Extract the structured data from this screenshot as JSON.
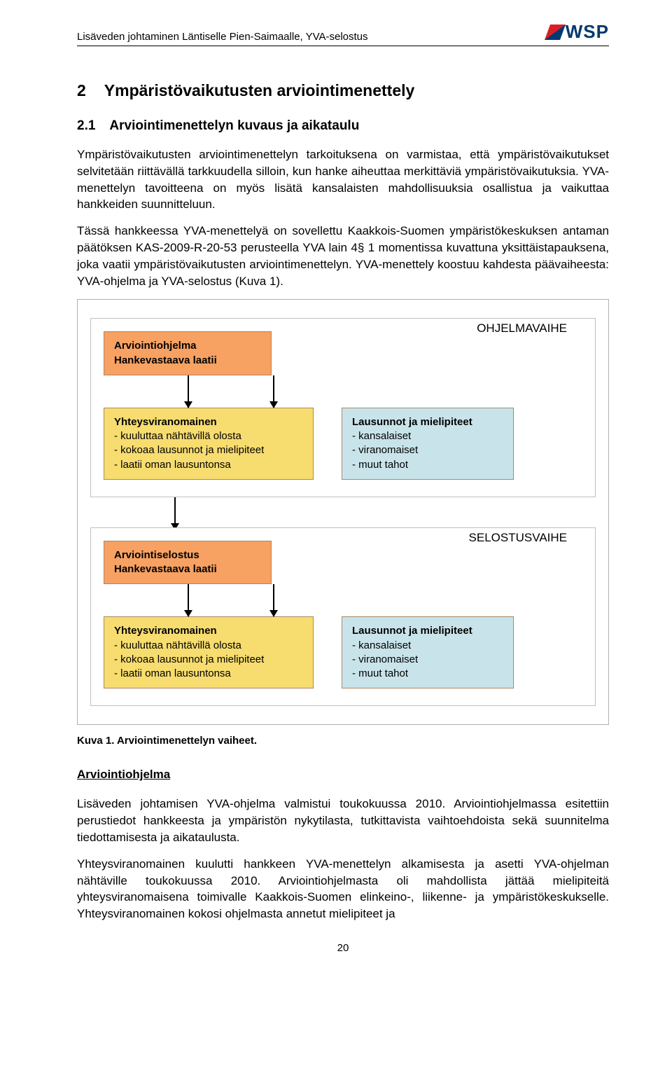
{
  "header": {
    "doc_title": "Lisäveden johtaminen Läntiselle Pien-Saimaalle, YVA-selostus",
    "logo_text": "WSP"
  },
  "section": {
    "number": "2",
    "title": "Ympäristövaikutusten arviointimenettely"
  },
  "subsection": {
    "number": "2.1",
    "title": "Arviointimenettelyn kuvaus ja aikataulu"
  },
  "paragraphs": {
    "p1": "Ympäristövaikutusten arviointimenettelyn tarkoituksena on varmistaa, että ympäristövaikutukset selvitetään riittävällä tarkkuudella silloin, kun hanke aiheuttaa merkittäviä ympäristövaikutuksia. YVA-menettelyn tavoitteena on myös lisätä kansalaisten mahdollisuuksia osallistua ja vaikuttaa hankkeiden suunnitteluun.",
    "p2": "Tässä hankkeessa YVA-menettelyä on sovellettu Kaakkois-Suomen ympäristökeskuksen antaman päätöksen KAS-2009-R-20-53 perusteella YVA lain 4§ 1 momentissa kuvattuna yksittäistapauksena, joka vaatii ympäristövaikutusten arviointimenettelyn. YVA-menettely koostuu kahdesta päävaiheesta: YVA-ohjelma ja YVA-selostus (Kuva 1).",
    "p3": "Lisäveden johtamisen YVA-ohjelma valmistui toukokuussa 2010. Arviointiohjelmassa esitettiin perustiedot hankkeesta ja ympäristön nykytilasta, tutkittavista vaihtoehdoista sekä suunnitelma tiedottamisesta ja aikataulusta.",
    "p4": "Yhteysviranomainen kuulutti hankkeen YVA-menettelyn alkamisesta ja asetti YVA-ohjelman nähtäville toukokuussa 2010. Arviointiohjelmasta oli mahdollista jättää mielipiteitä yhteysviranomaisena toimivalle Kaakkois-Suomen elinkeino-, liikenne- ja ympäristökeskukselle. Yhteysviranomainen kokosi ohjelmasta annetut mielipiteet ja"
  },
  "diagram": {
    "phase1_label": "OHJELMAVAIHE",
    "phase2_label": "SELOSTUSVAIHE",
    "node1": {
      "l1": "Arviointiohjelma",
      "l2": "Hankevastaava laatii"
    },
    "node2": {
      "title": "Yhteysviranomainen",
      "b1": "- kuuluttaa nähtävillä olosta",
      "b2": "- kokoaa lausunnot ja mielipiteet",
      "b3": "- laatii oman lausuntonsa"
    },
    "node3": {
      "title": "Lausunnot ja mielipiteet",
      "b1": "- kansalaiset",
      "b2": "- viranomaiset",
      "b3": "- muut tahot"
    },
    "node4": {
      "l1": "Arviointiselostus",
      "l2": "Hankevastaava laatii"
    },
    "node5": {
      "title": "Yhteysviranomainen",
      "b1": "- kuuluttaa nähtävillä olosta",
      "b2": "- kokoaa lausunnot ja mielipiteet",
      "b3": "- laatii oman lausuntonsa"
    },
    "node6": {
      "title": "Lausunnot ja mielipiteet",
      "b1": "- kansalaiset",
      "b2": "- viranomaiset",
      "b3": "- muut tahot"
    }
  },
  "caption": "Kuva 1. Arviointimenettelyn vaiheet.",
  "subheading": "Arviointiohjelma",
  "page_number": "20",
  "colors": {
    "orange": "#f7a162",
    "yellow": "#f7dc6f",
    "blue": "#c8e4ea",
    "border_gray": "#b0b0b0"
  }
}
